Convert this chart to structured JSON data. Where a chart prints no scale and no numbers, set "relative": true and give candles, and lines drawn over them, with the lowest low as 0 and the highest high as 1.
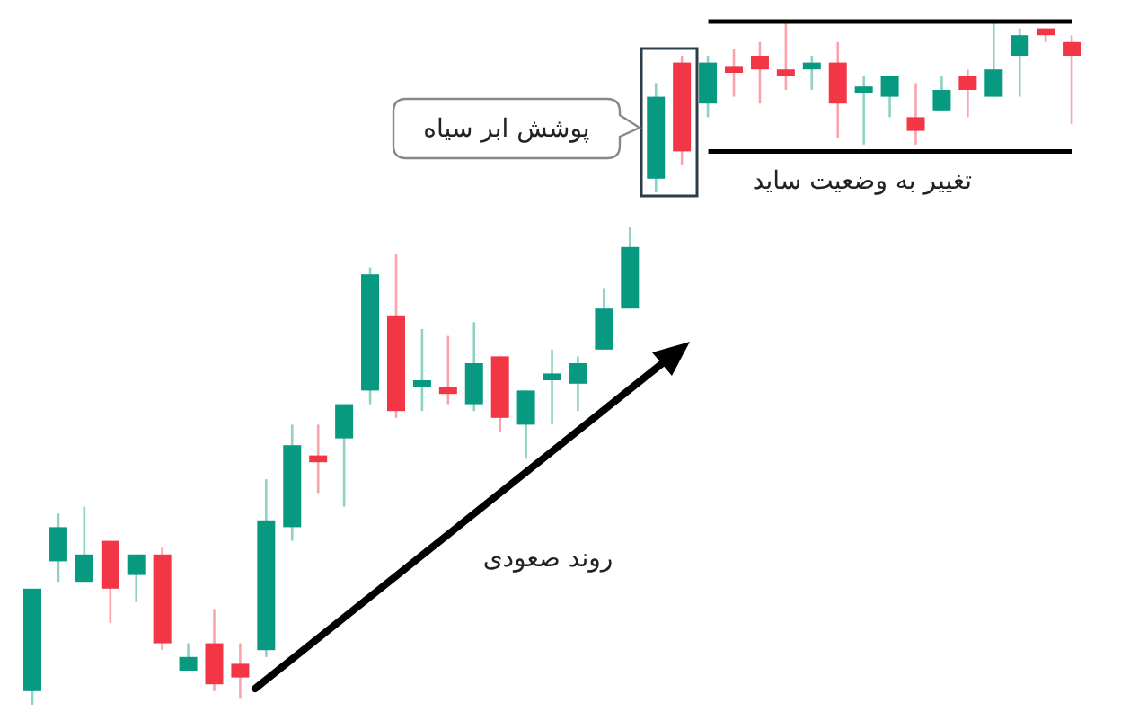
{
  "chart_data": {
    "type": "candlestick",
    "relative": true,
    "grid": false,
    "legend": false,
    "categories": [
      null,
      null,
      null,
      null,
      null,
      null,
      null,
      null,
      null,
      null,
      null,
      null,
      null,
      null,
      null,
      null,
      null,
      null,
      null,
      null,
      null,
      null,
      null,
      null,
      null,
      null,
      null,
      null,
      null,
      null,
      null,
      null,
      null,
      null,
      null,
      null,
      null,
      null,
      null,
      null,
      null
    ],
    "ohlc": [
      [
        0.02,
        0.17,
        0,
        0.17
      ],
      [
        0.21,
        0.28,
        0.18,
        0.26
      ],
      [
        0.18,
        0.29,
        0.18,
        0.22
      ],
      [
        0.24,
        0.24,
        0.12,
        0.17
      ],
      [
        0.19,
        0.22,
        0.15,
        0.22
      ],
      [
        0.22,
        0.23,
        0.08,
        0.09
      ],
      [
        0.05,
        0.09,
        0.05,
        0.07
      ],
      [
        0.09,
        0.14,
        0.02,
        0.03
      ],
      [
        0.06,
        0.09,
        0.01,
        0.04
      ],
      [
        0.08,
        0.33,
        0.07,
        0.27
      ],
      [
        0.26,
        0.41,
        0.24,
        0.38
      ],
      [
        0.365,
        0.41,
        0.31,
        0.355
      ],
      [
        0.39,
        0.44,
        0.29,
        0.44
      ],
      [
        0.46,
        0.64,
        0.44,
        0.63
      ],
      [
        0.57,
        0.66,
        0.42,
        0.43
      ],
      [
        0.465,
        0.55,
        0.43,
        0.475
      ],
      [
        0.465,
        0.54,
        0.44,
        0.455
      ],
      [
        0.44,
        0.56,
        0.43,
        0.5
      ],
      [
        0.51,
        0.51,
        0.4,
        0.42
      ],
      [
        0.41,
        0.46,
        0.36,
        0.46
      ],
      [
        0.475,
        0.52,
        0.41,
        0.485
      ],
      [
        0.47,
        0.51,
        0.43,
        0.5
      ],
      [
        0.52,
        0.61,
        0.52,
        0.58
      ],
      [
        0.58,
        0.7,
        0.58,
        0.67
      ],
      [
        0.77,
        0.91,
        0.75,
        0.89
      ],
      [
        0.94,
        0.95,
        0.79,
        0.81
      ],
      [
        0.88,
        0.95,
        0.86,
        0.94
      ],
      [
        0.935,
        0.96,
        0.89,
        0.925
      ],
      [
        0.95,
        0.97,
        0.88,
        0.93
      ],
      [
        0.93,
        1,
        0.9,
        0.92
      ],
      [
        0.93,
        0.95,
        0.9,
        0.94
      ],
      [
        0.94,
        0.97,
        0.83,
        0.88
      ],
      [
        0.895,
        0.92,
        0.82,
        0.905
      ],
      [
        0.89,
        0.92,
        0.86,
        0.92
      ],
      [
        0.86,
        0.91,
        0.82,
        0.84
      ],
      [
        0.87,
        0.92,
        0.87,
        0.9
      ],
      [
        0.92,
        0.93,
        0.86,
        0.9
      ],
      [
        0.89,
        1,
        0.89,
        0.93
      ],
      [
        0.95,
        0.99,
        0.89,
        0.98
      ],
      [
        0.99,
        0.99,
        0.97,
        0.98
      ],
      [
        0.97,
        0.98,
        0.85,
        0.95
      ]
    ],
    "colors": [
      "#089981",
      "#089981",
      "#089981",
      "#f23645",
      "#089981",
      "#f23645",
      "#089981",
      "#f23645",
      "#f23645",
      "#089981",
      "#089981",
      "#f23645",
      "#089981",
      "#089981",
      "#f23645",
      "#089981",
      "#f23645",
      "#089981",
      "#f23645",
      "#089981",
      "#089981",
      "#089981",
      "#089981",
      "#089981",
      "#089981",
      "#f23645",
      "#089981",
      "#f23645",
      "#f23645",
      "#f23645",
      "#089981",
      "#f23645",
      "#089981",
      "#089981",
      "#f23645",
      "#089981",
      "#f23645",
      "#089981",
      "#089981",
      "#f23645",
      "#f23645"
    ],
    "ref_lines": [
      {
        "axis": "y",
        "value": 1,
        "color": "#000000"
      },
      {
        "axis": "y",
        "value": 0.81,
        "color": "#000000"
      }
    ],
    "annotations": [
      "پوشش ابر سیاه",
      "تغییر به وضعیت ساید",
      "روند صعودی"
    ]
  }
}
